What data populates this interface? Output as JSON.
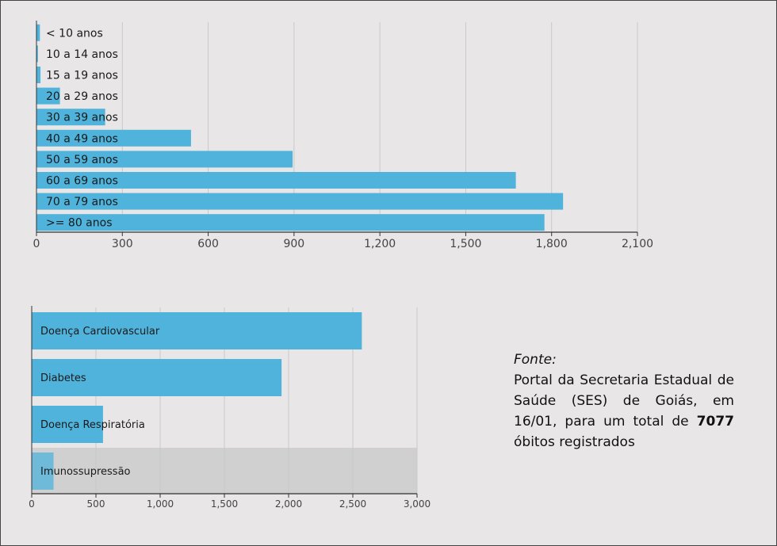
{
  "chart_data": [
    {
      "type": "bar",
      "orientation": "horizontal",
      "categories": [
        "< 10 anos",
        "10 a 14 anos",
        "15 a 19 anos",
        "20 a 29 anos",
        "30 a 39 anos",
        "40 a 49 anos",
        "50 a 59 anos",
        "60 a 69 anos",
        "70 a 79  anos",
        ">= 80 anos"
      ],
      "values": [
        12,
        5,
        14,
        82,
        240,
        540,
        895,
        1675,
        1840,
        1775
      ],
      "xlim": [
        0,
        2100
      ],
      "xticks": [
        "0",
        "300",
        "600",
        "900",
        "1,200",
        "1,500",
        "1,800",
        "2,100"
      ],
      "xtick_values": [
        0,
        300,
        600,
        900,
        1200,
        1500,
        1800,
        2100
      ],
      "grid": true,
      "bar_color": "#4fb3dc"
    },
    {
      "type": "bar",
      "orientation": "horizontal",
      "categories": [
        "Doença Cardiovascular",
        "Diabetes",
        "Doença Respiratória",
        "Imunossupressão"
      ],
      "values": [
        2570,
        1945,
        555,
        170
      ],
      "xlim": [
        0,
        3000
      ],
      "xticks": [
        "0",
        "500",
        "1,000",
        "1,500",
        "2,000",
        "2,500",
        "3,000"
      ],
      "xtick_values": [
        0,
        500,
        1000,
        1500,
        2000,
        2500,
        3000
      ],
      "grid": true,
      "bar_color": "#4fb3dc",
      "highlighted_category": "Imunossupressão"
    }
  ],
  "source_note": {
    "label": "Fonte:",
    "text_before": "Portal da Secretaria Estadual de Saúde (SES) de Goiás, em 16/01, para um total de ",
    "total": "7077",
    "text_after": " óbitos registrados"
  }
}
